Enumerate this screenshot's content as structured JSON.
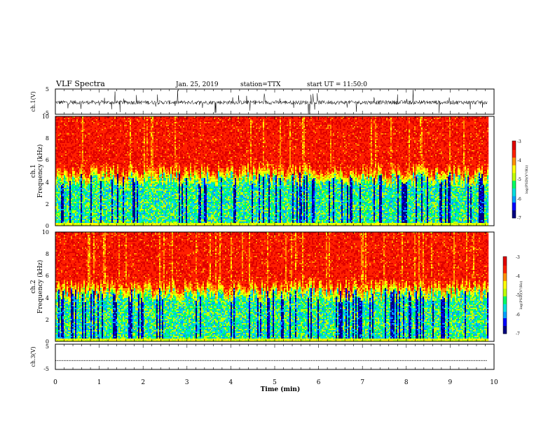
{
  "header": {
    "title": "VLF Spectra",
    "date": "Jan. 25, 2019",
    "station": "station=TTX",
    "start": "start UT = 11:50:0"
  },
  "colors": {
    "spectrum": [
      "#000080",
      "#0000ff",
      "#00a0ff",
      "#00e0e0",
      "#00ff60",
      "#c0ff00",
      "#ffff00",
      "#ff9000",
      "#ff2000",
      "#e00000"
    ]
  },
  "chart_data": [
    {
      "id": "ch1-waveform",
      "type": "line",
      "ylabel": "ch.1(V)",
      "ylim": [
        -5,
        5
      ],
      "yticks": [
        "5",
        "-5"
      ],
      "x_range": [
        0,
        9.85
      ],
      "baseline": -0.3,
      "note_noisy": true
    },
    {
      "id": "ch1-spectrogram",
      "type": "heatmap",
      "ylabel_top": "ch.1",
      "ylabel": "Frequency (kHz)",
      "ylim": [
        0,
        10
      ],
      "yticks": [
        "0",
        "2",
        "4",
        "6",
        "8",
        "10"
      ],
      "x_range": [
        0,
        9.85
      ],
      "colorbar": {
        "label": "log(PSD)(V²/Hz)",
        "range": [
          -7,
          -3
        ],
        "ticks": [
          "-3",
          "-4",
          "-5",
          "-6",
          "-7"
        ]
      },
      "profile": {
        "low_band_kHz": [
          0,
          4.5
        ],
        "high_band_kHz": [
          5.5,
          10
        ]
      }
    },
    {
      "id": "ch2-spectrogram",
      "type": "heatmap",
      "ylabel_top": "ch.2",
      "ylabel": "Frequency (kHz)",
      "ylim": [
        0,
        10
      ],
      "yticks": [
        "0",
        "2",
        "4",
        "6",
        "8",
        "10"
      ],
      "x_range": [
        0,
        9.85
      ],
      "colorbar": {
        "label": "log(PSD)(V²/Hz)",
        "range": [
          -7,
          -3
        ],
        "ticks": [
          "-3",
          "-4",
          "-5",
          "-6",
          "-7"
        ]
      },
      "profile": {
        "low_band_kHz": [
          0,
          4.5
        ],
        "high_band_kHz": [
          5.5,
          10
        ]
      }
    },
    {
      "id": "ch3-waveform",
      "type": "line",
      "ylabel": "ch.3(V)",
      "ylim": [
        -5,
        5
      ],
      "yticks": [
        "5",
        "-5"
      ],
      "x_range": [
        0,
        9.85
      ],
      "constant_value": -1.5,
      "xlabel": "Time (min)",
      "xlim": [
        0,
        10
      ],
      "xticks": [
        "0",
        "1",
        "2",
        "3",
        "4",
        "5",
        "6",
        "7",
        "8",
        "9",
        "10"
      ]
    }
  ]
}
